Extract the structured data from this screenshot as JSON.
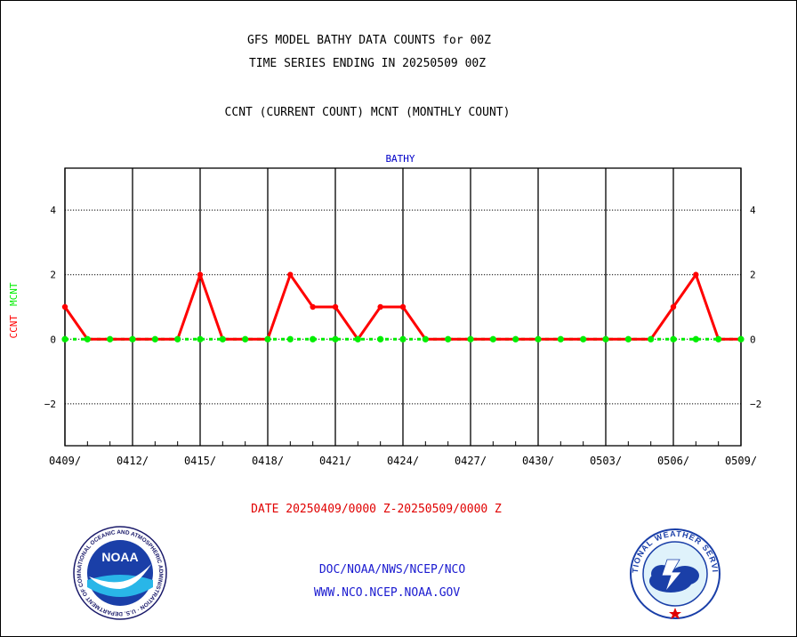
{
  "header": {
    "title_line1": "GFS MODEL BATHY DATA COUNTS for 00Z",
    "title_line2": "TIME SERIES ENDING IN 20250509 00Z",
    "subtitle": "CCNT (CURRENT COUNT) MCNT (MONTHLY COUNT)"
  },
  "footer": {
    "date_range": "DATE 20250409/0000 Z-20250509/0000 Z",
    "link1": "DOC/NOAA/NWS/NCEP/NCO",
    "link2": "WWW.NCO.NCEP.NOAA.GOV"
  },
  "logos": {
    "noaa_text": "NOAA",
    "noaa_ring": "NATIONAL OCEANIC AND ATMOSPHERIC ADMINISTRATION · U.S. DEPARTMENT OF COMMERCE ·",
    "nws_ring": "NATIONAL WEATHER SERVICE"
  },
  "chart_data": {
    "type": "line",
    "title": "BATHY",
    "ylabel_left": "CCNT",
    "ylabel_right": "MCNT",
    "ylim": [
      -3.3,
      5.3
    ],
    "yticks": [
      -2,
      0,
      2,
      4
    ],
    "ytick_labels": [
      "−2",
      "0",
      "2",
      "4"
    ],
    "x_ticks": [
      "0409/",
      "0412/",
      "0415/",
      "0418/",
      "0421/",
      "0424/",
      "0427/",
      "0430/",
      "0503/",
      "0506/",
      "0509/"
    ],
    "x_tick_days": [
      0,
      3,
      6,
      9,
      12,
      15,
      18,
      21,
      24,
      27,
      30
    ],
    "grid": true,
    "series": [
      {
        "name": "CCNT",
        "color": "#ff0000",
        "x": [
          0,
          1,
          2,
          3,
          4,
          5,
          6,
          7,
          8,
          9,
          10,
          11,
          12,
          13,
          14,
          15,
          16,
          17,
          18,
          19,
          20,
          21,
          22,
          23,
          24,
          25,
          26,
          27,
          28,
          29,
          30
        ],
        "values": [
          1,
          0,
          0,
          0,
          0,
          0,
          2,
          0,
          0,
          0,
          2,
          1,
          1,
          0,
          1,
          1,
          0,
          0,
          0,
          0,
          0,
          0,
          0,
          0,
          0,
          0,
          0,
          1,
          2,
          0,
          0
        ]
      },
      {
        "name": "MCNT",
        "color": "#00ee00",
        "x": [
          0,
          1,
          2,
          3,
          4,
          5,
          6,
          7,
          8,
          9,
          10,
          11,
          12,
          13,
          14,
          15,
          16,
          17,
          18,
          19,
          20,
          21,
          22,
          23,
          24,
          25,
          26,
          27,
          28,
          29,
          30
        ],
        "values": [
          0,
          0,
          0,
          0,
          0,
          0,
          0,
          0,
          0,
          0,
          0,
          0,
          0,
          0,
          0,
          0,
          0,
          0,
          0,
          0,
          0,
          0,
          0,
          0,
          0,
          0,
          0,
          0,
          0,
          0,
          0
        ]
      }
    ]
  }
}
